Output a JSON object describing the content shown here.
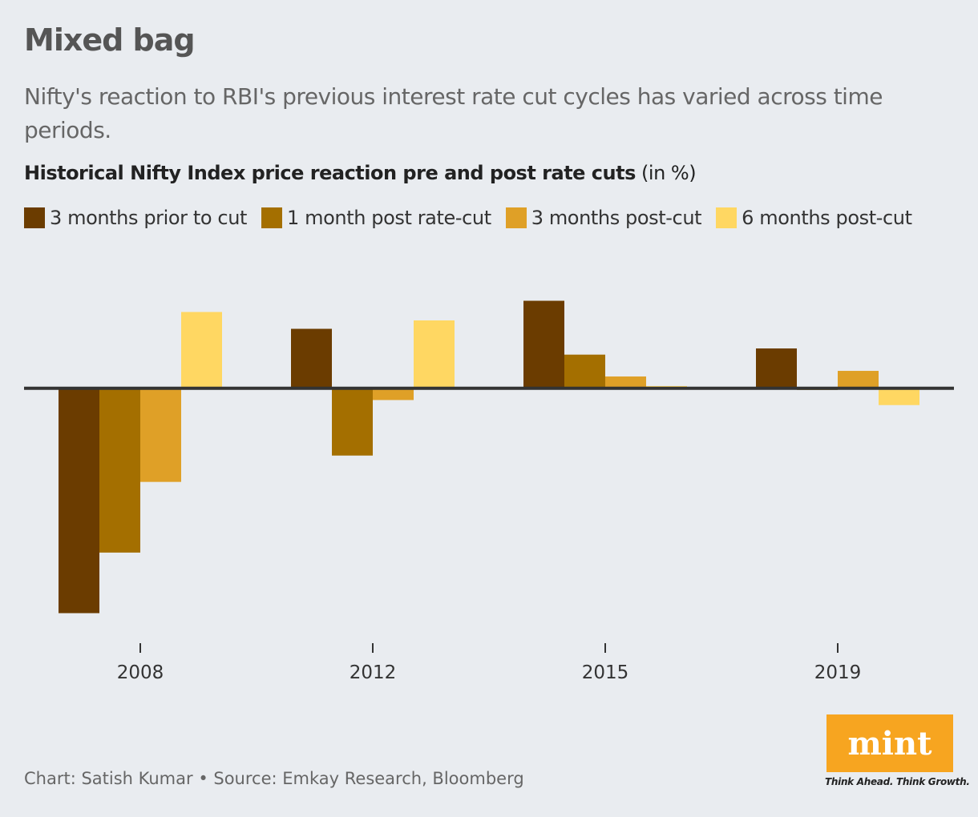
{
  "title": "Mixed bag",
  "subtitle": "Nifty's reaction to RBI's previous interest rate cut cycles has varied across time periods.",
  "chart_title": "Historical Nifty Index price reaction pre and post rate cuts",
  "chart_unit": "(in %)",
  "footer": "Chart: Satish Kumar • Source: Emkay Research, Bloomberg",
  "logo": {
    "text": "mint",
    "tagline": "Think Ahead. Think Growth."
  },
  "chart_data": {
    "type": "bar",
    "categories": [
      "2008",
      "2012",
      "2015",
      "2019"
    ],
    "series": [
      {
        "name": "3 months prior to cut",
        "color": "#6b3c00",
        "values": [
          -40.1,
          10.6,
          15.6,
          7.1
        ]
      },
      {
        "name": "1 month post rate-cut",
        "color": "#a46f00",
        "values": [
          -29.3,
          -12.0,
          6.0,
          -0.3
        ]
      },
      {
        "name": "3 months post-cut",
        "color": "#dfa027",
        "values": [
          -16.7,
          -2.1,
          2.1,
          3.1
        ]
      },
      {
        "name": "6 months post-cut",
        "color": "#ffd762",
        "values": [
          13.6,
          12.1,
          0.4,
          -3.0
        ]
      }
    ],
    "ylim": [
      -43.6,
      22.1
    ],
    "grid": false,
    "legend": "top-left",
    "xlabel": "",
    "ylabel": ""
  }
}
